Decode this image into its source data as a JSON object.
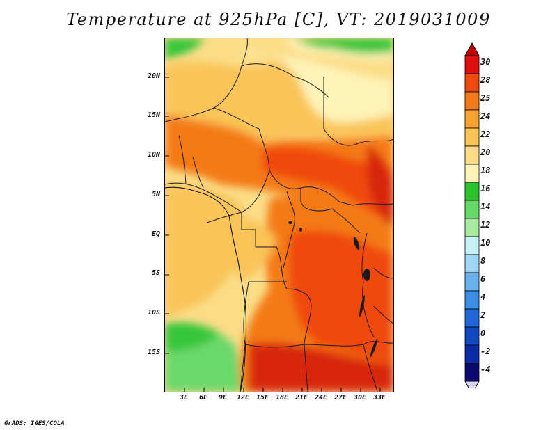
{
  "title": "Temperature at 925hPa [C], VT: 2019031009",
  "credit": "GrADS: IGES/COLA",
  "map": {
    "variable": "temperature",
    "level": "925hPa",
    "units": "C",
    "valid_time": "2019031009",
    "lat_labels": [
      "20N",
      "15N",
      "10N",
      "5N",
      "EQ",
      "5S",
      "10S",
      "15S"
    ],
    "lat_values": [
      20,
      15,
      10,
      5,
      0,
      -5,
      -10,
      -15
    ],
    "lon_labels": [
      "3E",
      "6E",
      "9E",
      "12E",
      "15E",
      "18E",
      "21E",
      "24E",
      "27E",
      "30E",
      "33E"
    ],
    "lon_values": [
      3,
      6,
      9,
      12,
      15,
      18,
      21,
      24,
      27,
      30,
      33
    ],
    "lat_range": [
      -19.5,
      25
    ],
    "lon_range": [
      0,
      35
    ]
  },
  "colorbar": {
    "levels": [
      "30",
      "28",
      "25",
      "24",
      "22",
      "20",
      "18",
      "16",
      "14",
      "12",
      "10",
      "8",
      "6",
      "4",
      "2",
      "0",
      "-2",
      "-4"
    ],
    "colors": [
      "#e01010",
      "#f04a10",
      "#f47a18",
      "#f7a531",
      "#f9c458",
      "#fbdd88",
      "#fef3b8",
      "#2dc32d",
      "#66d966",
      "#a7eb9e",
      "#c7f0f7",
      "#9fd6f5",
      "#6ab2ee",
      "#3f8ee6",
      "#2167d8",
      "#124ac3",
      "#0b2aa6",
      "#0a0a6e"
    ],
    "top_arrow_color": "#c80000",
    "bottom_arrow_color": "#d8d8f0"
  },
  "field_colors": {
    "c16": "#35c63a",
    "c14": "#6bd86b",
    "c18": "#fef3b8",
    "c20": "#fbdd88",
    "c22": "#f9c458",
    "c24": "#f7a531",
    "c25": "#f47a18",
    "c28": "#f04a10",
    "c30": "#d82810"
  }
}
